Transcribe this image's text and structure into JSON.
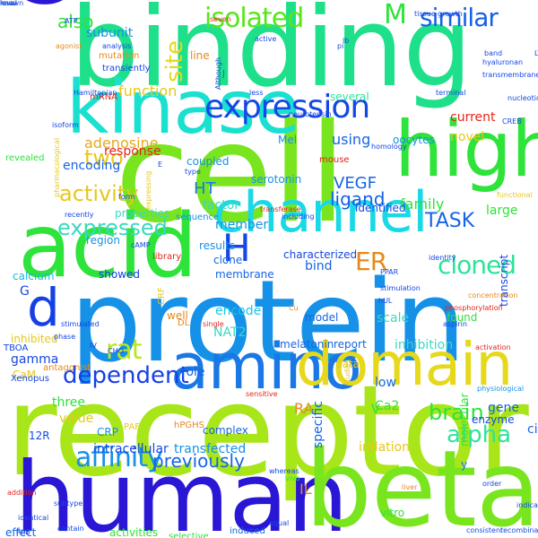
{
  "words": [
    {
      "text": "binding",
      "color": "#1fe08a",
      "vertical": false
    },
    {
      "text": "receptor",
      "color": "#a8e61a",
      "vertical": false
    },
    {
      "text": "protein",
      "color": "#1591e8",
      "vertical": false
    },
    {
      "text": "cell",
      "color": "#79e51e",
      "vertical": false
    },
    {
      "text": "human",
      "color": "#2a17d6",
      "vertical": false
    },
    {
      "text": "beta",
      "color": "#79e51e",
      "vertical": false
    },
    {
      "text": "acid",
      "color": "#2ee33a",
      "vertical": false
    },
    {
      "text": "CDNA",
      "color": "#2a17d6",
      "vertical": true
    },
    {
      "text": "kinase",
      "color": "#19e0cf",
      "vertical": false
    },
    {
      "text": "channel",
      "color": "#19d9e6",
      "vertical": false
    },
    {
      "text": "high",
      "color": "#2ee33a",
      "vertical": false
    },
    {
      "text": "amino",
      "color": "#1978e6",
      "vertical": false
    },
    {
      "text": "domain",
      "color": "#e6d81a",
      "vertical": false
    },
    {
      "text": "d",
      "color": "#1540e6",
      "vertical": false
    },
    {
      "text": "expression",
      "color": "#1547e6",
      "vertical": false
    },
    {
      "text": "H",
      "color": "#1547e6",
      "vertical": false
    },
    {
      "text": "isolated",
      "color": "#57e61a",
      "vertical": false
    },
    {
      "text": "similar",
      "color": "#1560e6",
      "vertical": false
    },
    {
      "text": "M",
      "color": "#2ee33a",
      "vertical": false
    },
    {
      "text": "affinity",
      "color": "#1591e8",
      "vertical": false
    },
    {
      "text": "alpha",
      "color": "#2ee39a",
      "vertical": false
    },
    {
      "text": "brain",
      "color": "#2ee33a",
      "vertical": false
    },
    {
      "text": "rat",
      "color": "#b8e61a",
      "vertical": false
    },
    {
      "text": "cloned",
      "color": "#2ee39a",
      "vertical": false
    },
    {
      "text": "ER",
      "color": "#e6891a",
      "vertical": false
    },
    {
      "text": "activity",
      "color": "#e6c81a",
      "vertical": false
    },
    {
      "text": "expressed",
      "color": "#39d9c1",
      "vertical": false
    },
    {
      "text": "two",
      "color": "#e6c81a",
      "vertical": false
    },
    {
      "text": "TASK",
      "color": "#1565e6",
      "vertical": false
    },
    {
      "text": "site",
      "color": "#e6d81a",
      "vertical": true
    },
    {
      "text": "VEGF",
      "color": "#1565e6",
      "vertical": false
    },
    {
      "text": "dependent",
      "color": "#1540e6",
      "vertical": false
    },
    {
      "text": "previously",
      "color": "#1565e6",
      "vertical": false
    },
    {
      "text": "function",
      "color": "#e6c81a",
      "vertical": false
    },
    {
      "text": "adenosine",
      "color": "#e6a81a",
      "vertical": false
    },
    {
      "text": "ligand",
      "color": "#1560e6",
      "vertical": false
    },
    {
      "text": "family",
      "color": "#2ee33a",
      "vertical": false
    },
    {
      "text": "large",
      "color": "#2ee33a",
      "vertical": false
    },
    {
      "text": "identified",
      "color": "#1547e6",
      "vertical": false
    },
    {
      "text": "also",
      "color": "#2ee33a",
      "vertical": false
    },
    {
      "text": "subunit",
      "color": "#1591e8",
      "vertical": false
    },
    {
      "text": "using",
      "color": "#1565e6",
      "vertical": false
    },
    {
      "text": "serotonin",
      "color": "#1591e8",
      "vertical": false
    },
    {
      "text": "current",
      "color": "#e6241a",
      "vertical": false
    },
    {
      "text": "novel",
      "color": "#e6c81a",
      "vertical": false
    },
    {
      "text": "member",
      "color": "#1591e8",
      "vertical": false
    },
    {
      "text": "response",
      "color": "#e6241a",
      "vertical": false
    },
    {
      "text": "encoding",
      "color": "#1565e6",
      "vertical": false
    },
    {
      "text": "HT",
      "color": "#1578e6",
      "vertical": false
    },
    {
      "text": "factor",
      "color": "#39d9c1",
      "vertical": false
    },
    {
      "text": "coupled",
      "color": "#1591e8",
      "vertical": false
    },
    {
      "text": "region",
      "color": "#1591e8",
      "vertical": false
    },
    {
      "text": "results",
      "color": "#1591e8",
      "vertical": false
    },
    {
      "text": "clone",
      "color": "#1565e6",
      "vertical": false
    },
    {
      "text": "showed",
      "color": "#1540e6",
      "vertical": false
    },
    {
      "text": "calcium",
      "color": "#19b6e6",
      "vertical": false
    },
    {
      "text": "membrane",
      "color": "#1565e6",
      "vertical": false
    },
    {
      "text": "bind",
      "color": "#1565e6",
      "vertical": false
    },
    {
      "text": "characterized",
      "color": "#1547e6",
      "vertical": false
    },
    {
      "text": "scale",
      "color": "#39d9c1",
      "vertical": false
    },
    {
      "text": "model",
      "color": "#1565e6",
      "vertical": false
    },
    {
      "text": "found",
      "color": "#2ee33a",
      "vertical": false
    },
    {
      "text": "inhibition",
      "color": "#39d9c1",
      "vertical": false
    },
    {
      "text": "report",
      "color": "#1565e6",
      "vertical": false
    },
    {
      "text": "melatonin",
      "color": "#1565e6",
      "vertical": false
    },
    {
      "text": "encode",
      "color": "#19c6e6",
      "vertical": false
    },
    {
      "text": "well",
      "color": "#e6891a",
      "vertical": false
    },
    {
      "text": "NAT2",
      "color": "#39d9c1",
      "vertical": false
    },
    {
      "text": "inhibited",
      "color": "#e6c81a",
      "vertical": false
    },
    {
      "text": "gamma",
      "color": "#1547e6",
      "vertical": false
    },
    {
      "text": "CaM",
      "color": "#e6c81a",
      "vertical": false
    },
    {
      "text": "G",
      "color": "#1547e6",
      "vertical": false
    },
    {
      "text": "RA",
      "color": "#e6891a",
      "vertical": false
    },
    {
      "text": "data",
      "color": "#e6c81a",
      "vertical": false
    },
    {
      "text": "role",
      "color": "#1565e6",
      "vertical": false
    },
    {
      "text": "three",
      "color": "#2ee33a",
      "vertical": false
    },
    {
      "text": "value",
      "color": "#e6c81a",
      "vertical": false
    },
    {
      "text": "12R",
      "color": "#1547e6",
      "vertical": false
    },
    {
      "text": "CRP",
      "color": "#1591e8",
      "vertical": false
    },
    {
      "text": "PAF",
      "color": "#e6c81a",
      "vertical": false
    },
    {
      "text": "hPGHS",
      "color": "#e6891a",
      "vertical": false
    },
    {
      "text": "transfected",
      "color": "#1591e8",
      "vertical": false
    },
    {
      "text": "intracellular",
      "color": "#1547e6",
      "vertical": false
    },
    {
      "text": "complex",
      "color": "#1565e6",
      "vertical": false
    },
    {
      "text": "inflation",
      "color": "#e6c81a",
      "vertical": false
    },
    {
      "text": "enzyme",
      "color": "#1547e6",
      "vertical": false
    },
    {
      "text": "gene",
      "color": "#1565e6",
      "vertical": false
    },
    {
      "text": "Ca2",
      "color": "#2ee33a",
      "vertical": false
    },
    {
      "text": "low",
      "color": "#1565e6",
      "vertical": false
    },
    {
      "text": "V",
      "color": "#2ee33a",
      "vertical": false
    },
    {
      "text": "cis",
      "color": "#1565e6",
      "vertical": false
    },
    {
      "text": "molecular",
      "color": "#2ee33a",
      "vertical": true
    },
    {
      "text": "IL",
      "color": "#e6891a",
      "vertical": false
    },
    {
      "text": "specific",
      "color": "#1565e6",
      "vertical": true
    },
    {
      "text": "y",
      "color": "#1565e6",
      "vertical": false
    },
    {
      "text": "vitro",
      "color": "#2ee33a",
      "vertical": false
    },
    {
      "text": "effect",
      "color": "#1565e6",
      "vertical": false
    },
    {
      "text": "activities",
      "color": "#2ee33a",
      "vertical": false
    },
    {
      "text": "selective",
      "color": "#2ee33a",
      "vertical": false
    },
    {
      "text": "induced",
      "color": "#1565e6",
      "vertical": false
    },
    {
      "text": "line",
      "color": "#e6891a",
      "vertical": false
    },
    {
      "text": "J",
      "color": "#1565e6",
      "vertical": false
    },
    {
      "text": "Mel",
      "color": "#1591e8",
      "vertical": false
    },
    {
      "text": "mouse",
      "color": "#e6241a",
      "vertical": false
    },
    {
      "text": "oocytes",
      "color": "#1591e8",
      "vertical": false
    },
    {
      "text": "several",
      "color": "#2ee39a",
      "vertical": false
    },
    {
      "text": "transcript",
      "color": "#1547e6",
      "vertical": true
    },
    {
      "text": "mRNA",
      "color": "#e6241a",
      "vertical": false
    },
    {
      "text": "revealed",
      "color": "#2ee33a",
      "vertical": false
    },
    {
      "text": "properties",
      "color": "#39d9c1",
      "vertical": false
    },
    {
      "text": "sequence",
      "color": "#1591e8",
      "vertical": false
    },
    {
      "text": "library",
      "color": "#e6241a",
      "vertical": false
    },
    {
      "text": "CRF",
      "color": "#e6c81a",
      "vertical": true
    },
    {
      "text": "DL",
      "color": "#e6891a",
      "vertical": false
    },
    {
      "text": "antagonist",
      "color": "#e6891a",
      "vertical": false
    },
    {
      "text": "Xenopus",
      "color": "#1547e6",
      "vertical": false
    },
    {
      "text": "TBOA",
      "color": "#1547e6",
      "vertical": false
    },
    {
      "text": "transiently",
      "color": "#1547e6",
      "vertical": false
    },
    {
      "text": "mutation",
      "color": "#e6891a",
      "vertical": false
    },
    {
      "text": "analysis",
      "color": "#1547e6",
      "vertical": false
    },
    {
      "text": "agonist",
      "color": "#e6891a",
      "vertical": false
    },
    {
      "text": "growth",
      "color": "#1547e6",
      "vertical": false
    },
    {
      "text": "tissue",
      "color": "#1547e6",
      "vertical": false
    },
    {
      "text": "band",
      "color": "#1547e6",
      "vertical": false
    },
    {
      "text": "seven",
      "color": "#e6241a",
      "vertical": false
    },
    {
      "text": "type",
      "color": "#1547e6",
      "vertical": false
    },
    {
      "text": "less",
      "color": "#1547e6",
      "vertical": false
    },
    {
      "text": "neurotensin",
      "color": "#1547e6",
      "vertical": false
    },
    {
      "text": "stimulation",
      "color": "#1547e6",
      "vertical": false
    },
    {
      "text": "concentration",
      "color": "#e6891a",
      "vertical": false
    },
    {
      "text": "physiological",
      "color": "#1591e8",
      "vertical": false
    },
    {
      "text": "activation",
      "color": "#e6241a",
      "vertical": false
    },
    {
      "text": "liver",
      "color": "#e6891a",
      "vertical": false
    },
    {
      "text": "order",
      "color": "#1547e6",
      "vertical": false
    },
    {
      "text": "studies",
      "color": "#e6c81a",
      "vertical": true
    },
    {
      "text": "homology",
      "color": "#1547e6",
      "vertical": false
    },
    {
      "text": "terminal",
      "color": "#1547e6",
      "vertical": false
    },
    {
      "text": "functional",
      "color": "#e6c81a",
      "vertical": false
    },
    {
      "text": "identity",
      "color": "#1547e6",
      "vertical": false
    },
    {
      "text": "phosphorylation",
      "color": "#e6241a",
      "vertical": false
    },
    {
      "text": "recombinant",
      "color": "#1547e6",
      "vertical": false
    },
    {
      "text": "consistent",
      "color": "#1547e6",
      "vertical": false
    },
    {
      "text": "indicate",
      "color": "#1547e6",
      "vertical": false
    },
    {
      "text": "contain",
      "color": "#1547e6",
      "vertical": false
    },
    {
      "text": "addition",
      "color": "#e6241a",
      "vertical": false
    },
    {
      "text": "identical",
      "color": "#1547e6",
      "vertical": false
    },
    {
      "text": "pharmacological",
      "color": "#e6c81a",
      "vertical": true
    },
    {
      "text": "recently",
      "color": "#1547e6",
      "vertical": false
    },
    {
      "text": "expressing",
      "color": "#e6c81a",
      "vertical": true
    },
    {
      "text": "form",
      "color": "#1547e6",
      "vertical": false
    },
    {
      "text": "cAMP",
      "color": "#1547e6",
      "vertical": false
    },
    {
      "text": "equal",
      "color": "#1547e6",
      "vertical": false
    },
    {
      "text": "sensitive",
      "color": "#e6241a",
      "vertical": false
    },
    {
      "text": "including",
      "color": "#1547e6",
      "vertical": false
    },
    {
      "text": "transferase",
      "color": "#e6241a",
      "vertical": false
    },
    {
      "text": "single",
      "color": "#e6241a",
      "vertical": false
    },
    {
      "text": "transmembrane",
      "color": "#1547e6",
      "vertical": false
    },
    {
      "text": "LTB4",
      "color": "#1547e6",
      "vertical": false
    },
    {
      "text": "hyaluronan",
      "color": "#1547e6",
      "vertical": false
    },
    {
      "text": "nucleotide",
      "color": "#1547e6",
      "vertical": false
    },
    {
      "text": "Hamiltonian",
      "color": "#1547e6",
      "vertical": false
    },
    {
      "text": "Although",
      "color": "#1547e6",
      "vertical": true
    },
    {
      "text": "isoform",
      "color": "#1547e6",
      "vertical": false
    },
    {
      "text": "vivo",
      "color": "#2ee33a",
      "vertical": false
    },
    {
      "text": "whereas",
      "color": "#1547e6",
      "vertical": false
    },
    {
      "text": "subtype",
      "color": "#1547e6",
      "vertical": false
    },
    {
      "text": "RIIB",
      "color": "#1547e6",
      "vertical": false
    },
    {
      "text": "ATP",
      "color": "#1547e6",
      "vertical": false
    },
    {
      "text": "active",
      "color": "#1547e6",
      "vertical": false
    },
    {
      "text": "CREB",
      "color": "#1547e6",
      "vertical": false
    },
    {
      "text": "Cu",
      "color": "#e6891a",
      "vertical": false
    },
    {
      "text": "E",
      "color": "#1547e6",
      "vertical": false
    },
    {
      "text": "IV",
      "color": "#1547e6",
      "vertical": false
    },
    {
      "text": "PPAR",
      "color": "#1547e6",
      "vertical": false
    },
    {
      "text": "hUL",
      "color": "#1547e6",
      "vertical": false
    },
    {
      "text": "lb",
      "color": "#1547e6",
      "vertical": false
    },
    {
      "text": "pi",
      "color": "#1547e6",
      "vertical": false
    },
    {
      "text": "CHO",
      "color": "#1547e6",
      "vertical": false
    },
    {
      "text": "phase",
      "color": "#1547e6",
      "vertical": false
    },
    {
      "text": "stimulated",
      "color": "#1547e6",
      "vertical": false
    },
    {
      "text": "aspirin",
      "color": "#1547e6",
      "vertical": false
    },
    {
      "text": "known",
      "color": "#1547e6",
      "vertical": false
    },
    {
      "text": "level",
      "color": "#1547e6",
      "vertical": false
    },
    {
      "text": "may",
      "color": "#1547e6",
      "vertical": true
    },
    {
      "text": "new",
      "color": "#1547e6",
      "vertical": false
    }
  ]
}
